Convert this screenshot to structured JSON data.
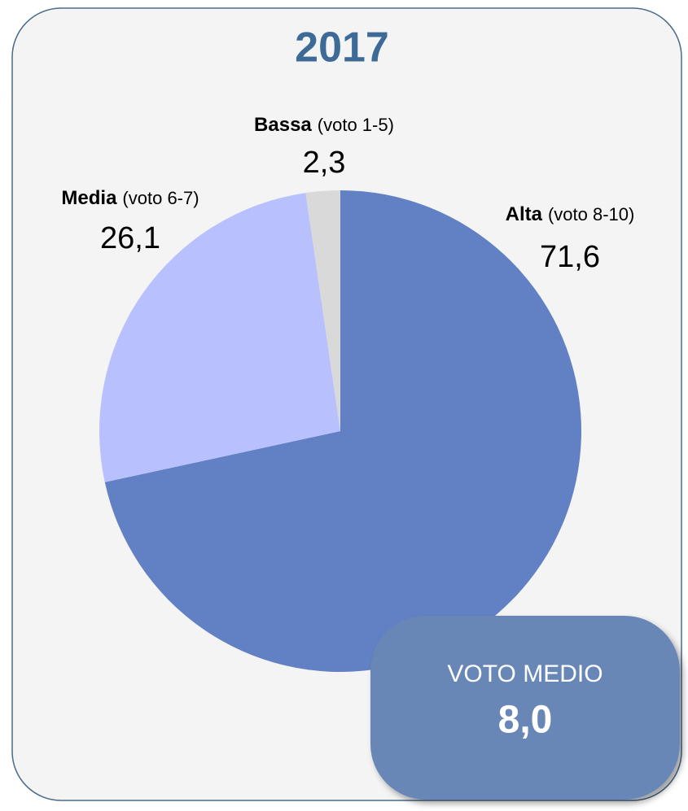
{
  "chart_data": {
    "type": "pie",
    "title": "2017",
    "categories": [
      "Alta",
      "Media",
      "Bassa"
    ],
    "category_notes": [
      "(voto 8-10)",
      "(voto 6-7)",
      "(voto 1-5)"
    ],
    "values": [
      71.6,
      26.1,
      2.3
    ],
    "value_labels": [
      "71,6",
      "26,1",
      "2,3"
    ],
    "colors": [
      "#6281c4",
      "#b8c1fd",
      "#d9d9d9"
    ],
    "badge": {
      "label": "VOTO MEDIO",
      "value": "8,0"
    }
  }
}
